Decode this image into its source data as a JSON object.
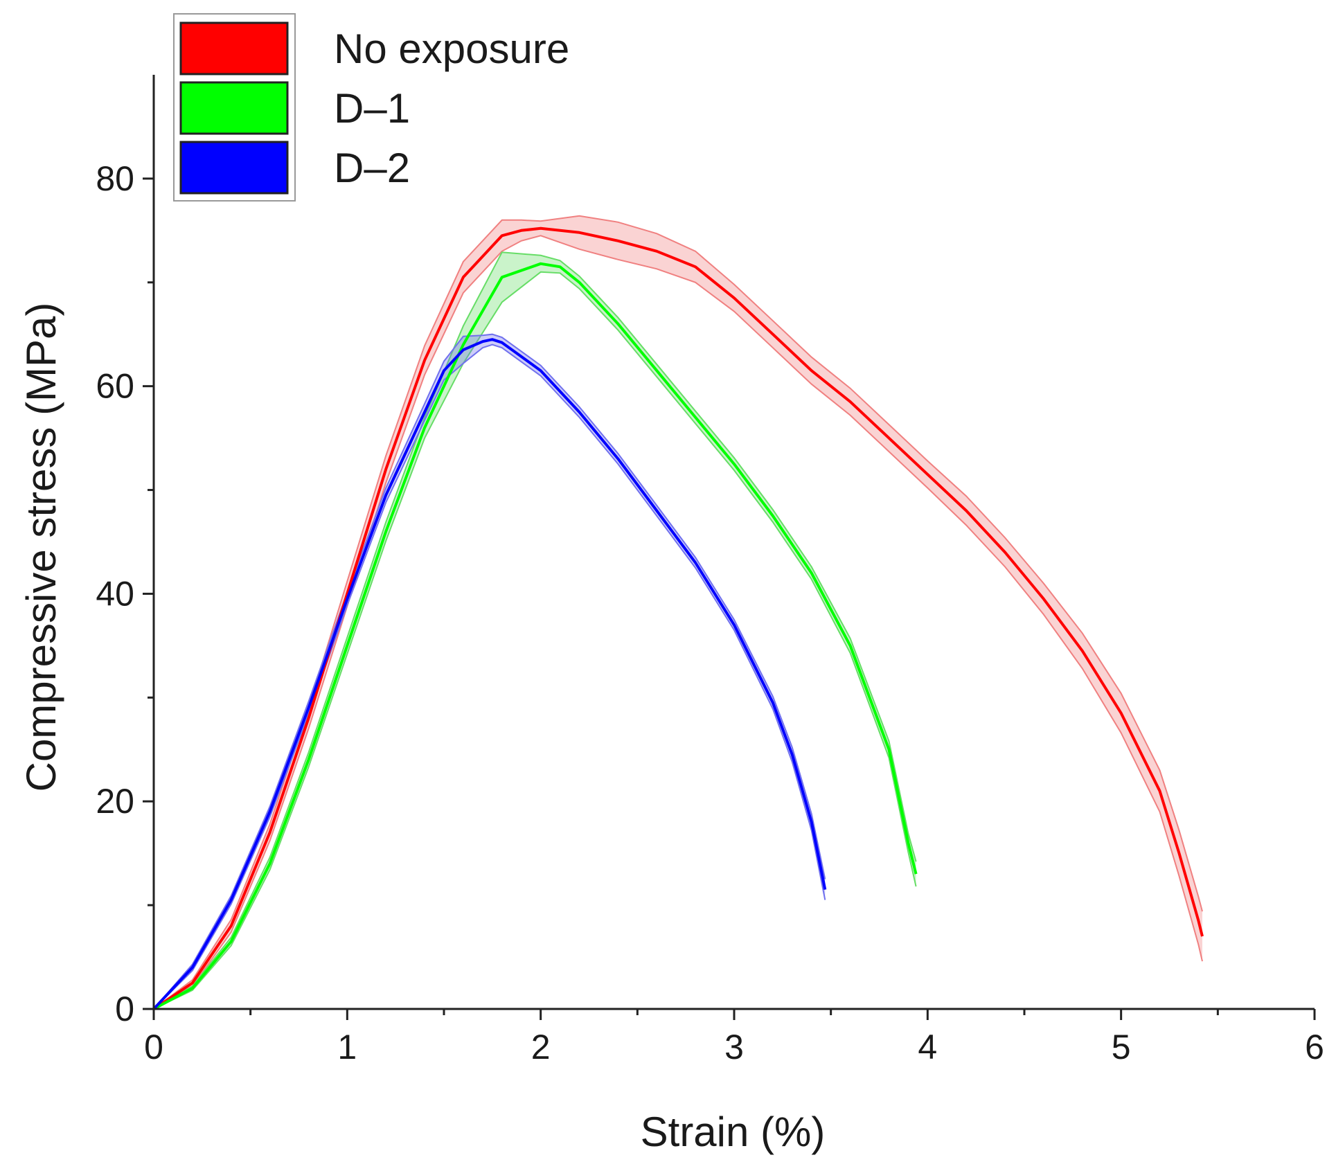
{
  "chart_data": {
    "type": "line",
    "title": "",
    "xlabel": "Strain (%)",
    "ylabel": "Compressive stress (MPa)",
    "xlim": [
      0,
      6
    ],
    "ylim": [
      0,
      90
    ],
    "x_ticks": [
      0,
      1,
      2,
      3,
      4,
      5,
      6
    ],
    "y_ticks": [
      0,
      20,
      40,
      60,
      80
    ],
    "x_minor_step": 0.5,
    "y_minor_step": 10,
    "grid": false,
    "legend_position": "top-left",
    "series": [
      {
        "name": "No exposure",
        "color": "#ff0000",
        "band_color": "#f08080",
        "x": [
          0,
          0.2,
          0.4,
          0.6,
          0.8,
          1.0,
          1.2,
          1.4,
          1.6,
          1.8,
          1.9,
          2.0,
          2.2,
          2.4,
          2.6,
          2.8,
          3.0,
          3.2,
          3.4,
          3.6,
          3.8,
          4.0,
          4.2,
          4.4,
          4.6,
          4.8,
          5.0,
          5.2,
          5.3,
          5.4,
          5.42
        ],
        "y": [
          0,
          2.5,
          8,
          17,
          28,
          40,
          52,
          62.5,
          70.5,
          74.5,
          75.0,
          75.2,
          74.8,
          74.0,
          73.0,
          71.5,
          68.5,
          65.0,
          61.5,
          58.5,
          55.0,
          51.5,
          48.0,
          44.0,
          39.5,
          34.5,
          28.5,
          21.0,
          15.0,
          8.5,
          7.0
        ],
        "band": [
          0,
          0.3,
          0.6,
          0.8,
          1.0,
          1.2,
          1.3,
          1.4,
          1.5,
          1.5,
          1.0,
          0.7,
          1.6,
          1.8,
          1.7,
          1.5,
          1.3,
          1.3,
          1.3,
          1.3,
          1.3,
          1.3,
          1.4,
          1.4,
          1.5,
          1.7,
          1.9,
          2.0,
          2.2,
          2.3,
          2.4
        ]
      },
      {
        "name": "D–1",
        "color": "#00ff00",
        "band_color": "#66dd66",
        "x": [
          0,
          0.2,
          0.4,
          0.6,
          0.8,
          1.0,
          1.2,
          1.4,
          1.6,
          1.8,
          2.0,
          2.1,
          2.2,
          2.4,
          2.6,
          2.8,
          3.0,
          3.2,
          3.4,
          3.6,
          3.8,
          3.9,
          3.94
        ],
        "y": [
          0,
          2,
          6.5,
          14,
          24,
          35,
          46,
          56,
          64,
          70.5,
          71.8,
          71.5,
          70.0,
          66.0,
          61.5,
          57.0,
          52.5,
          47.5,
          42.0,
          35.0,
          25.0,
          16.0,
          13.0
        ],
        "band": [
          0,
          0.2,
          0.4,
          0.6,
          0.7,
          0.8,
          0.9,
          1.0,
          1.8,
          2.4,
          0.8,
          0.6,
          0.6,
          0.6,
          0.6,
          0.6,
          0.6,
          0.6,
          0.6,
          0.7,
          0.8,
          0.9,
          1.2
        ]
      },
      {
        "name": "D–2",
        "color": "#0000ff",
        "band_color": "#7070ee",
        "x": [
          0,
          0.2,
          0.4,
          0.6,
          0.8,
          1.0,
          1.2,
          1.4,
          1.5,
          1.6,
          1.7,
          1.75,
          1.8,
          2.0,
          2.2,
          2.4,
          2.6,
          2.8,
          3.0,
          3.2,
          3.3,
          3.4,
          3.47
        ],
        "y": [
          0,
          4,
          10.5,
          19,
          29,
          39.5,
          49.5,
          57.5,
          61.5,
          63.5,
          64.3,
          64.5,
          64.2,
          61.5,
          57.5,
          53.0,
          48.0,
          43.0,
          37.0,
          29.5,
          24.5,
          18.0,
          11.5
        ],
        "band": [
          0,
          0.3,
          0.4,
          0.5,
          0.6,
          0.6,
          0.7,
          0.8,
          0.9,
          1.3,
          0.6,
          0.5,
          0.5,
          0.5,
          0.5,
          0.5,
          0.5,
          0.5,
          0.5,
          0.6,
          0.7,
          0.8,
          1.0
        ]
      }
    ]
  }
}
